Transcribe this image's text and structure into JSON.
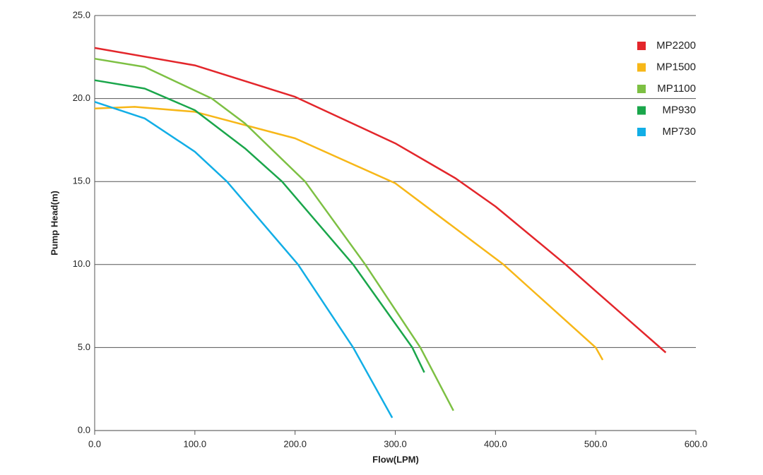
{
  "chart_data": {
    "type": "line",
    "x_label": "Flow(LPM)",
    "y_label": "Pump Head(m)",
    "xlim": [
      0,
      600
    ],
    "ylim": [
      0,
      25
    ],
    "xticks": [
      {
        "value": 0,
        "label": "0.0"
      },
      {
        "value": 100,
        "label": "100.0"
      },
      {
        "value": 200,
        "label": "200.0"
      },
      {
        "value": 300,
        "label": "300.0"
      },
      {
        "value": 400,
        "label": "400.0"
      },
      {
        "value": 500,
        "label": "500.0"
      },
      {
        "value": 600,
        "label": "600.0"
      }
    ],
    "yticks": [
      {
        "value": 0,
        "label": "0.0"
      },
      {
        "value": 5,
        "label": "5.0"
      },
      {
        "value": 10,
        "label": "10.0"
      },
      {
        "value": 15,
        "label": "15.0"
      },
      {
        "value": 20,
        "label": "20.0"
      },
      {
        "value": 25,
        "label": "25.0"
      }
    ],
    "grid": true,
    "legend": "upper right",
    "series": [
      {
        "name": "MP2200",
        "color": "#e3262b",
        "x": [
          0,
          100,
          200,
          300,
          360,
          400,
          470,
          500,
          570
        ],
        "values": [
          23.05,
          22.0,
          20.1,
          17.3,
          15.2,
          13.5,
          10.0,
          8.4,
          4.7
        ]
      },
      {
        "name": "MP1500",
        "color": "#f7b718",
        "x": [
          0,
          40,
          100,
          200,
          300,
          408,
          500,
          507
        ],
        "values": [
          19.4,
          19.5,
          19.2,
          17.6,
          14.9,
          10.0,
          5.0,
          4.25
        ]
      },
      {
        "name": "MP1100",
        "color": "#7dc043",
        "x": [
          0,
          50,
          117,
          150,
          210,
          270,
          325,
          358
        ],
        "values": [
          22.4,
          21.9,
          20.0,
          18.5,
          15.0,
          10.0,
          5.0,
          1.2
        ]
      },
      {
        "name": "MP930",
        "color": "#1aa64b",
        "x": [
          0,
          50,
          100,
          150,
          187,
          258,
          317,
          329
        ],
        "values": [
          21.1,
          20.6,
          19.3,
          17.0,
          15.0,
          10.0,
          5.0,
          3.5
        ]
      },
      {
        "name": "MP730",
        "color": "#12aee6",
        "x": [
          0,
          50,
          100,
          132,
          203,
          258,
          297
        ],
        "values": [
          19.8,
          18.8,
          16.8,
          15.0,
          10.0,
          5.0,
          0.77
        ]
      }
    ]
  }
}
